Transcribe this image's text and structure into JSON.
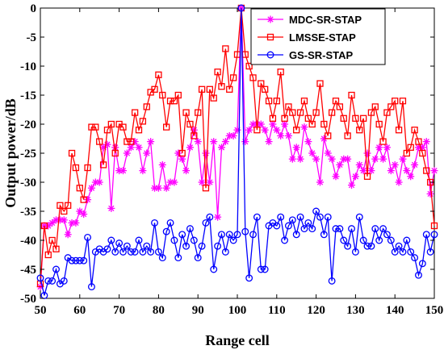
{
  "chart_data": {
    "type": "line",
    "xlabel": "Range cell",
    "ylabel": "Output power/dB",
    "xlim": [
      50,
      150
    ],
    "ylim": [
      -50,
      0
    ],
    "xticks": [
      50,
      60,
      70,
      80,
      90,
      100,
      110,
      120,
      130,
      140,
      150
    ],
    "yticks": [
      0,
      -5,
      -10,
      -15,
      -20,
      -25,
      -30,
      -35,
      -40,
      -45,
      -50
    ],
    "grid": false,
    "legend_position": "top-right",
    "x": [
      50,
      51,
      52,
      53,
      54,
      55,
      56,
      57,
      58,
      59,
      60,
      61,
      62,
      63,
      64,
      65,
      66,
      67,
      68,
      69,
      70,
      71,
      72,
      73,
      74,
      75,
      76,
      77,
      78,
      79,
      80,
      81,
      82,
      83,
      84,
      85,
      86,
      87,
      88,
      89,
      90,
      91,
      92,
      93,
      94,
      95,
      96,
      97,
      98,
      99,
      100,
      101,
      102,
      103,
      104,
      105,
      106,
      107,
      108,
      109,
      110,
      111,
      112,
      113,
      114,
      115,
      116,
      117,
      118,
      119,
      120,
      121,
      122,
      123,
      124,
      125,
      126,
      127,
      128,
      129,
      130,
      131,
      132,
      133,
      134,
      135,
      136,
      137,
      138,
      139,
      140,
      141,
      142,
      143,
      144,
      145,
      146,
      147,
      148,
      149,
      150
    ],
    "series": [
      {
        "name": "MDC-SR-STAP",
        "color": "#ff00ff",
        "marker": "asterisk",
        "values": [
          -48,
          -37.5,
          -37.5,
          -37,
          -36.5,
          -36.5,
          -36.5,
          -39,
          -37,
          -37,
          -35,
          -35.5,
          -33,
          -31,
          -30,
          -30,
          -24,
          -23.5,
          -34.5,
          -24,
          -28,
          -28,
          -25,
          -24,
          -23,
          -24,
          -28,
          -25,
          -23,
          -31,
          -31,
          -27,
          -31,
          -30,
          -30,
          -25,
          -26,
          -28,
          -24,
          -21,
          -23,
          -30,
          -25,
          -30,
          -23,
          -36,
          -24,
          -23,
          -22,
          -22,
          -21,
          0,
          -23,
          -21,
          -20,
          -20,
          -20,
          -21,
          -23,
          -20,
          -21,
          -22,
          -20,
          -22,
          -26,
          -24,
          -26,
          -20.5,
          -23,
          -25,
          -26,
          -30,
          -22.5,
          -25,
          -26,
          -29,
          -27,
          -26,
          -26,
          -30.5,
          -29,
          -27,
          -28,
          -25,
          -28,
          -26,
          -24,
          -26,
          -24,
          -28,
          -27,
          -30,
          -26,
          -28,
          -29,
          -27,
          -24,
          -24,
          -23,
          -32,
          -28
        ]
      },
      {
        "name": "LMSSE-STAP",
        "color": "#ff0000",
        "marker": "square",
        "values": [
          -47.5,
          -37.5,
          -42.5,
          -40,
          -41.5,
          -34,
          -35,
          -34,
          -25,
          -27.5,
          -31,
          -33,
          -27.5,
          -20.5,
          -20.5,
          -23,
          -27,
          -21,
          -20,
          -25,
          -20,
          -20.5,
          -23,
          -23,
          -18,
          -21,
          -19.5,
          -17,
          -14.5,
          -14,
          -11.5,
          -15,
          -20.5,
          -16,
          -16,
          -15,
          -25,
          -18,
          -20,
          -22,
          -18,
          -14,
          -31,
          -14,
          -15.5,
          -11,
          -13.5,
          -7,
          -14,
          -12,
          -8,
          0,
          -8,
          -10,
          -12,
          -21,
          -13,
          -14,
          -16,
          -19,
          -16,
          -11,
          -19,
          -17,
          -18,
          -21,
          -18,
          -16,
          -19,
          -20,
          -18,
          -13,
          -20,
          -22,
          -18,
          -16,
          -17,
          -19,
          -22,
          -15,
          -19,
          -21,
          -19,
          -29,
          -18,
          -17,
          -20,
          -23,
          -18,
          -17,
          -16,
          -21,
          -16,
          -25,
          -24,
          -21,
          -23,
          -25,
          -28,
          -30,
          -37.5
        ]
      },
      {
        "name": "GS-SR-STAP",
        "color": "#0000ff",
        "marker": "circle",
        "values": [
          -46.5,
          -49.5,
          -47,
          -47,
          -45,
          -47.5,
          -47,
          -43,
          -43.5,
          -43.5,
          -43.5,
          -43.5,
          -39.5,
          -48,
          -42,
          -41.5,
          -42,
          -41.5,
          -40,
          -42,
          -40.5,
          -42,
          -41,
          -42,
          -42,
          -40,
          -42,
          -41,
          -42,
          -37,
          -42,
          -43,
          -38.5,
          -37,
          -40,
          -43,
          -39,
          -41,
          -38,
          -40,
          -43,
          -41,
          -37,
          -36,
          -45,
          -41,
          -39,
          -42,
          -39,
          -40,
          -39,
          0,
          -38.5,
          -46.5,
          -39,
          -36,
          -45,
          -45,
          -37.5,
          -37,
          -37.5,
          -36,
          -40,
          -37.5,
          -36.5,
          -39,
          -36,
          -38,
          -37,
          -38,
          -35,
          -36,
          -39,
          -36,
          -47,
          -38,
          -38,
          -40,
          -41,
          -38,
          -42,
          -36,
          -40,
          -41,
          -41,
          -38,
          -40,
          -38,
          -39,
          -40,
          -42,
          -41,
          -42,
          -40,
          -42,
          -43,
          -46,
          -44,
          -39,
          -42,
          -39
        ]
      }
    ]
  }
}
